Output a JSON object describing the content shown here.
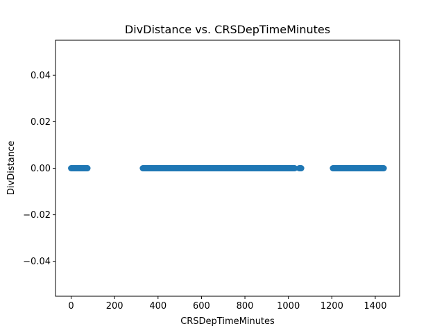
{
  "chart_data": {
    "type": "scatter",
    "title": "DivDistance vs. CRSDepTimeMinutes",
    "xlabel": "CRSDepTimeMinutes",
    "ylabel": "DivDistance",
    "xlim": [
      -72,
      1512
    ],
    "ylim": [
      -0.055,
      0.055
    ],
    "xticks": [
      0,
      200,
      400,
      600,
      800,
      1000,
      1200,
      1400
    ],
    "xtick_labels": [
      "0",
      "200",
      "400",
      "600",
      "800",
      "1000",
      "1200",
      "1400"
    ],
    "yticks": [
      -0.04,
      -0.02,
      0.0,
      0.02,
      0.04
    ],
    "ytick_labels": [
      "−0.04",
      "−0.02",
      "0.00",
      "0.02",
      "0.04"
    ],
    "grid": false,
    "marker_color": "#1f77b4",
    "series": [
      {
        "x_ranges": [
          [
            0,
            75
          ],
          [
            330,
            1030
          ],
          [
            1050,
            1060
          ],
          [
            1205,
            1440
          ]
        ],
        "y": 0.0
      }
    ]
  }
}
